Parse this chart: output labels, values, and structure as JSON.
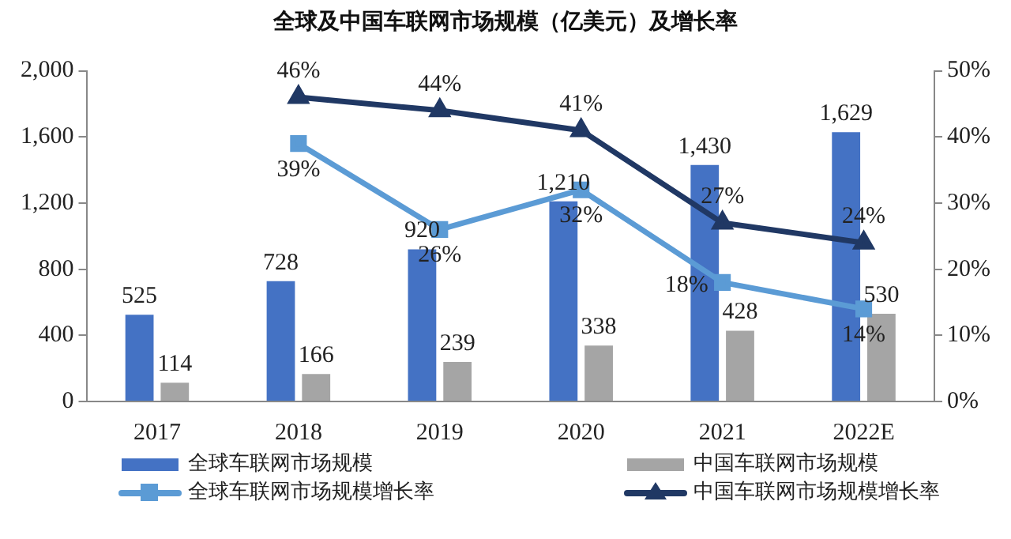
{
  "chart_data": {
    "type": "bar",
    "title": "全球及中国车联网市场规模（亿美元）及增长率",
    "categories": [
      "2017",
      "2018",
      "2019",
      "2020",
      "2021",
      "2022E"
    ],
    "series": [
      {
        "name": "全球车联网市场规模",
        "color": "#4472c4",
        "values": [
          525,
          728,
          920,
          1210,
          1430,
          1629
        ],
        "value_labels": [
          "525",
          "728",
          "920",
          "1,210",
          "1,430",
          "1,629"
        ]
      },
      {
        "name": "中国车联网市场规模",
        "color": "#a5a5a5",
        "values": [
          114,
          166,
          239,
          338,
          428,
          530
        ],
        "value_labels": [
          "114",
          "166",
          "239",
          "338",
          "428",
          "530"
        ]
      },
      {
        "name": "全球车联网市场规模增长率",
        "type": "line",
        "axis": "y2",
        "marker": "square",
        "color": "#5b9bd5",
        "values": [
          null,
          39,
          26,
          32,
          18,
          14
        ],
        "value_labels": [
          null,
          "39%",
          "26%",
          "32%",
          "18%",
          "14%"
        ]
      },
      {
        "name": "中国车联网市场规模增长率",
        "type": "line",
        "axis": "y2",
        "marker": "triangle",
        "color": "#203864",
        "values": [
          null,
          46,
          44,
          41,
          27,
          24
        ],
        "value_labels": [
          null,
          "46%",
          "44%",
          "41%",
          "27%",
          "24%"
        ]
      }
    ],
    "ylim": [
      0,
      2000
    ],
    "yticks": [
      {
        "value": 0,
        "label": "0"
      },
      {
        "value": 400,
        "label": "400"
      },
      {
        "value": 800,
        "label": "800"
      },
      {
        "value": 1200,
        "label": "1,200"
      },
      {
        "value": 1600,
        "label": "1,600"
      },
      {
        "value": 2000,
        "label": "2,000"
      }
    ],
    "y2lim": [
      0,
      50
    ],
    "y2ticks": [
      {
        "value": 0,
        "label": "0%"
      },
      {
        "value": 10,
        "label": "10%"
      },
      {
        "value": 20,
        "label": "20%"
      },
      {
        "value": 30,
        "label": "30%"
      },
      {
        "value": 40,
        "label": "40%"
      },
      {
        "value": 50,
        "label": "50%"
      }
    ],
    "legend": "bottom"
  }
}
